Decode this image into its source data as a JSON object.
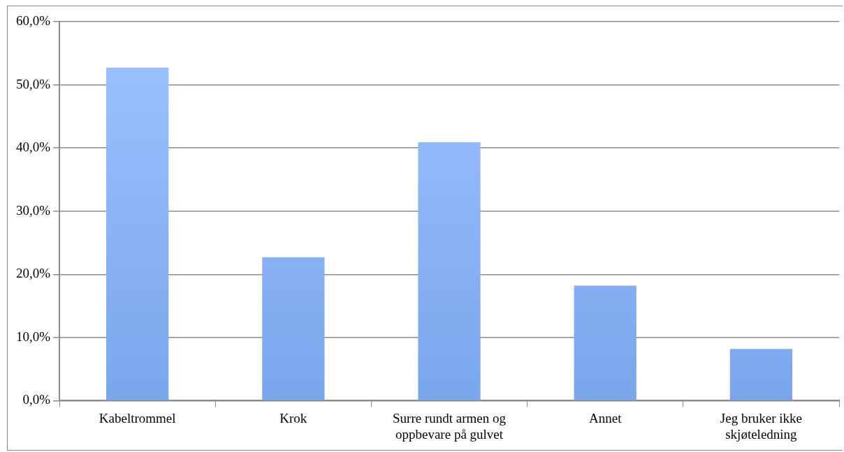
{
  "chart_data": {
    "type": "bar",
    "categories": [
      "Kabeltrommel",
      "Krok",
      "Surre rundt armen og oppbevare på gulvet",
      "Annet",
      "Jeg bruker ikke skjøteledning"
    ],
    "values": [
      52.7,
      22.7,
      40.9,
      18.2,
      8.2
    ],
    "color": "#7aa6ec",
    "ylim": [
      0,
      60
    ],
    "yticks": [
      {
        "value": 0,
        "label": "0,0%"
      },
      {
        "value": 10,
        "label": "10,0%"
      },
      {
        "value": 20,
        "label": "20,0%"
      },
      {
        "value": 30,
        "label": "30,0%"
      },
      {
        "value": 40,
        "label": "40,0%"
      },
      {
        "value": 50,
        "label": "50,0%"
      },
      {
        "value": 60,
        "label": "60,0%"
      }
    ],
    "grid": "y",
    "legend": false
  }
}
